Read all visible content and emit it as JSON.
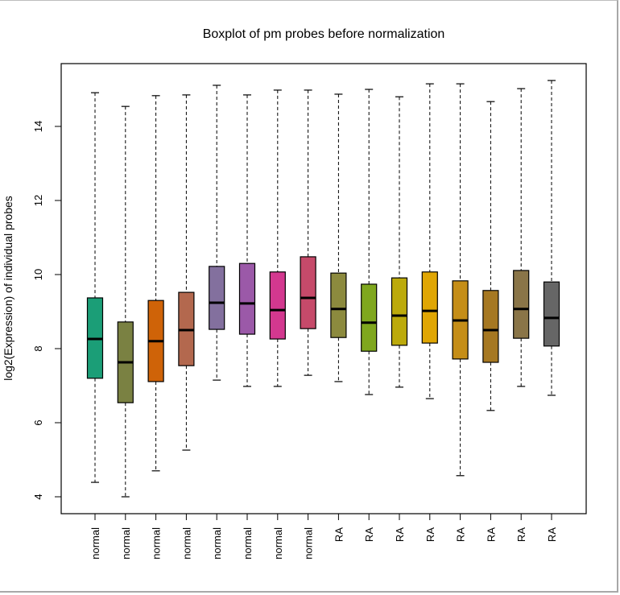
{
  "chart_data": {
    "type": "boxplot",
    "title": "Boxplot of pm probes before normalization",
    "xlabel": "",
    "ylabel": "log2(Expression) of individual probes",
    "ylim": [
      3.55,
      15.5
    ],
    "yticks": [
      4,
      6,
      8,
      10,
      12,
      14
    ],
    "grid": false,
    "legend": "none",
    "categories": [
      "normal",
      "normal",
      "normal",
      "normal",
      "normal",
      "normal",
      "normal",
      "normal",
      "RA",
      "RA",
      "RA",
      "RA",
      "RA",
      "RA",
      "RA",
      "RA"
    ],
    "series": [
      {
        "name": "normal",
        "color": "#1B9E77",
        "whisker_low": 4.39,
        "q1": 7.2,
        "median": 8.26,
        "q3": 9.37,
        "whisker_high": 14.91
      },
      {
        "name": "normal",
        "color": "#7A8142",
        "whisker_low": 4.0,
        "q1": 6.54,
        "median": 7.63,
        "q3": 8.72,
        "whisker_high": 14.54
      },
      {
        "name": "normal",
        "color": "#CF6308",
        "whisker_low": 4.7,
        "q1": 7.11,
        "median": 8.2,
        "q3": 9.3,
        "whisker_high": 14.83
      },
      {
        "name": "normal",
        "color": "#B3684E",
        "whisker_low": 5.26,
        "q1": 7.54,
        "median": 8.5,
        "q3": 9.52,
        "whisker_high": 14.85
      },
      {
        "name": "normal",
        "color": "#83709E",
        "whisker_low": 7.15,
        "q1": 8.52,
        "median": 9.24,
        "q3": 10.22,
        "whisker_high": 15.11
      },
      {
        "name": "normal",
        "color": "#9B59A8",
        "whisker_low": 6.98,
        "q1": 8.39,
        "median": 9.22,
        "q3": 10.3,
        "whisker_high": 14.85
      },
      {
        "name": "normal",
        "color": "#D3388F",
        "whisker_low": 6.98,
        "q1": 8.26,
        "median": 9.04,
        "q3": 10.07,
        "whisker_high": 14.98
      },
      {
        "name": "normal",
        "color": "#C64A6A",
        "whisker_low": 7.28,
        "q1": 8.54,
        "median": 9.37,
        "q3": 10.48,
        "whisker_high": 14.98
      },
      {
        "name": "RA",
        "color": "#8C8A3E",
        "whisker_low": 7.11,
        "q1": 8.3,
        "median": 9.07,
        "q3": 10.04,
        "whisker_high": 14.87
      },
      {
        "name": "RA",
        "color": "#7FA71E",
        "whisker_low": 6.76,
        "q1": 7.93,
        "median": 8.7,
        "q3": 9.74,
        "whisker_high": 15.0
      },
      {
        "name": "RA",
        "color": "#BCAA0C",
        "whisker_low": 6.96,
        "q1": 8.09,
        "median": 8.89,
        "q3": 9.91,
        "whisker_high": 14.8
      },
      {
        "name": "RA",
        "color": "#E0A604",
        "whisker_low": 6.65,
        "q1": 8.15,
        "median": 9.02,
        "q3": 10.07,
        "whisker_high": 15.15
      },
      {
        "name": "RA",
        "color": "#C58E18",
        "whisker_low": 4.57,
        "q1": 7.72,
        "median": 8.76,
        "q3": 9.83,
        "whisker_high": 15.15
      },
      {
        "name": "RA",
        "color": "#A67822",
        "whisker_low": 6.33,
        "q1": 7.63,
        "median": 8.5,
        "q3": 9.57,
        "whisker_high": 14.67
      },
      {
        "name": "RA",
        "color": "#8A7548",
        "whisker_low": 6.98,
        "q1": 8.28,
        "median": 9.07,
        "q3": 10.11,
        "whisker_high": 15.02
      },
      {
        "name": "RA",
        "color": "#666666",
        "whisker_low": 6.74,
        "q1": 8.07,
        "median": 8.83,
        "q3": 9.8,
        "whisker_high": 15.24
      }
    ]
  }
}
